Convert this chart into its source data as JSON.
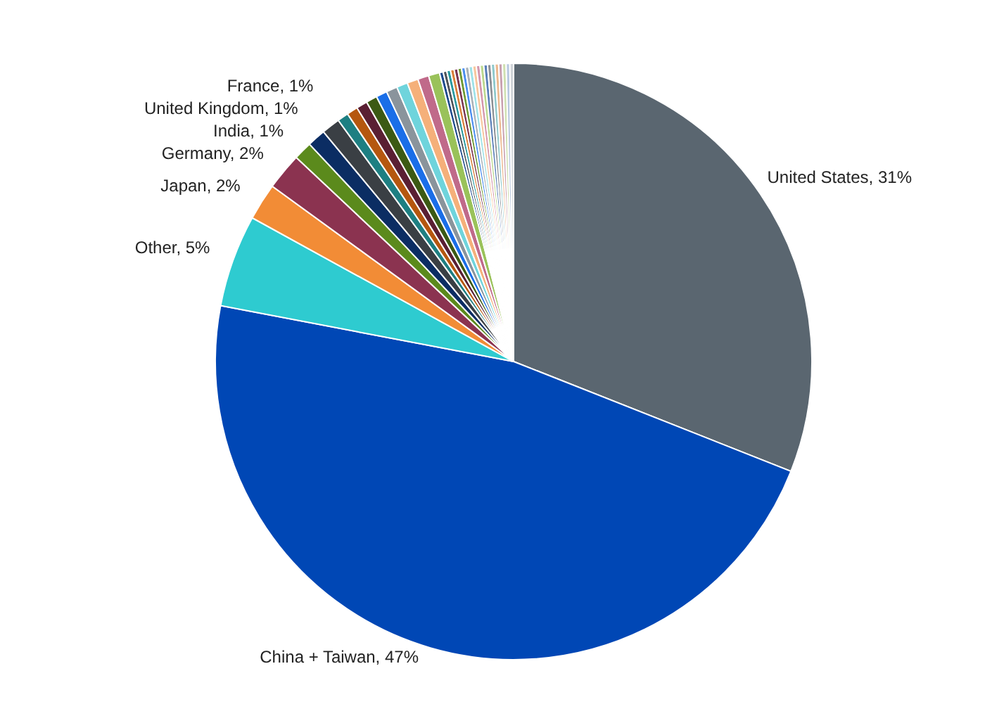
{
  "chart_data": {
    "type": "pie",
    "categories": [
      "United States",
      "China + Taiwan",
      "Other",
      "Japan",
      "Germany",
      "India",
      "United Kingdom",
      "France",
      null,
      null,
      null,
      null,
      null,
      null,
      null,
      null,
      null,
      null,
      null,
      null,
      null,
      null,
      null,
      null,
      null,
      null,
      null,
      null,
      null,
      null,
      null,
      null,
      null,
      null,
      null,
      null,
      null,
      null
    ],
    "values": [
      31,
      47,
      5,
      2,
      2,
      1,
      1,
      1,
      0.6,
      0.6,
      0.6,
      0.6,
      0.6,
      0.6,
      0.6,
      0.6,
      0.6,
      0.6,
      0.2,
      0.2,
      0.2,
      0.2,
      0.2,
      0.2,
      0.2,
      0.2,
      0.2,
      0.2,
      0.2,
      0.2,
      0.2,
      0.2,
      0.2,
      0.2,
      0.2,
      0.2,
      0.2,
      0.2
    ],
    "value_labels": [
      "31%",
      "47%",
      "5%",
      "2%",
      "2%",
      "1%",
      "1%",
      "1%",
      null,
      null,
      null,
      null,
      null,
      null,
      null,
      null,
      null,
      null,
      null,
      null,
      null,
      null,
      null,
      null,
      null,
      null,
      null,
      null,
      null,
      null,
      null,
      null,
      null,
      null,
      null,
      null,
      null,
      null
    ],
    "colors": [
      "#5a6670",
      "#0047b5",
      "#2ecbd0",
      "#f28c36",
      "#8b3350",
      "#5b8a1c",
      "#0b2d63",
      "#3a3f44",
      "#1e7f82",
      "#b5570f",
      "#5a1f33",
      "#3c5a14",
      "#1a6ee8",
      "#8a949c",
      "#6fd4dc",
      "#f5b07a",
      "#c06a8a",
      "#9ac25a",
      "#1d4a8c",
      "#4f5459",
      "#2a9aa0",
      "#d9803a",
      "#7a3550",
      "#6f9a35",
      "#4d8ff0",
      "#a9b1b8",
      "#9ee2e8",
      "#f7c79e",
      "#d496ad",
      "#bcd88f",
      "#5a7fb8",
      "#8c9095",
      "#8fc9cc",
      "#ecb98f",
      "#c8a0b0",
      "#cfe0b0",
      "#b8c8e0",
      "#d0d4d8"
    ]
  }
}
